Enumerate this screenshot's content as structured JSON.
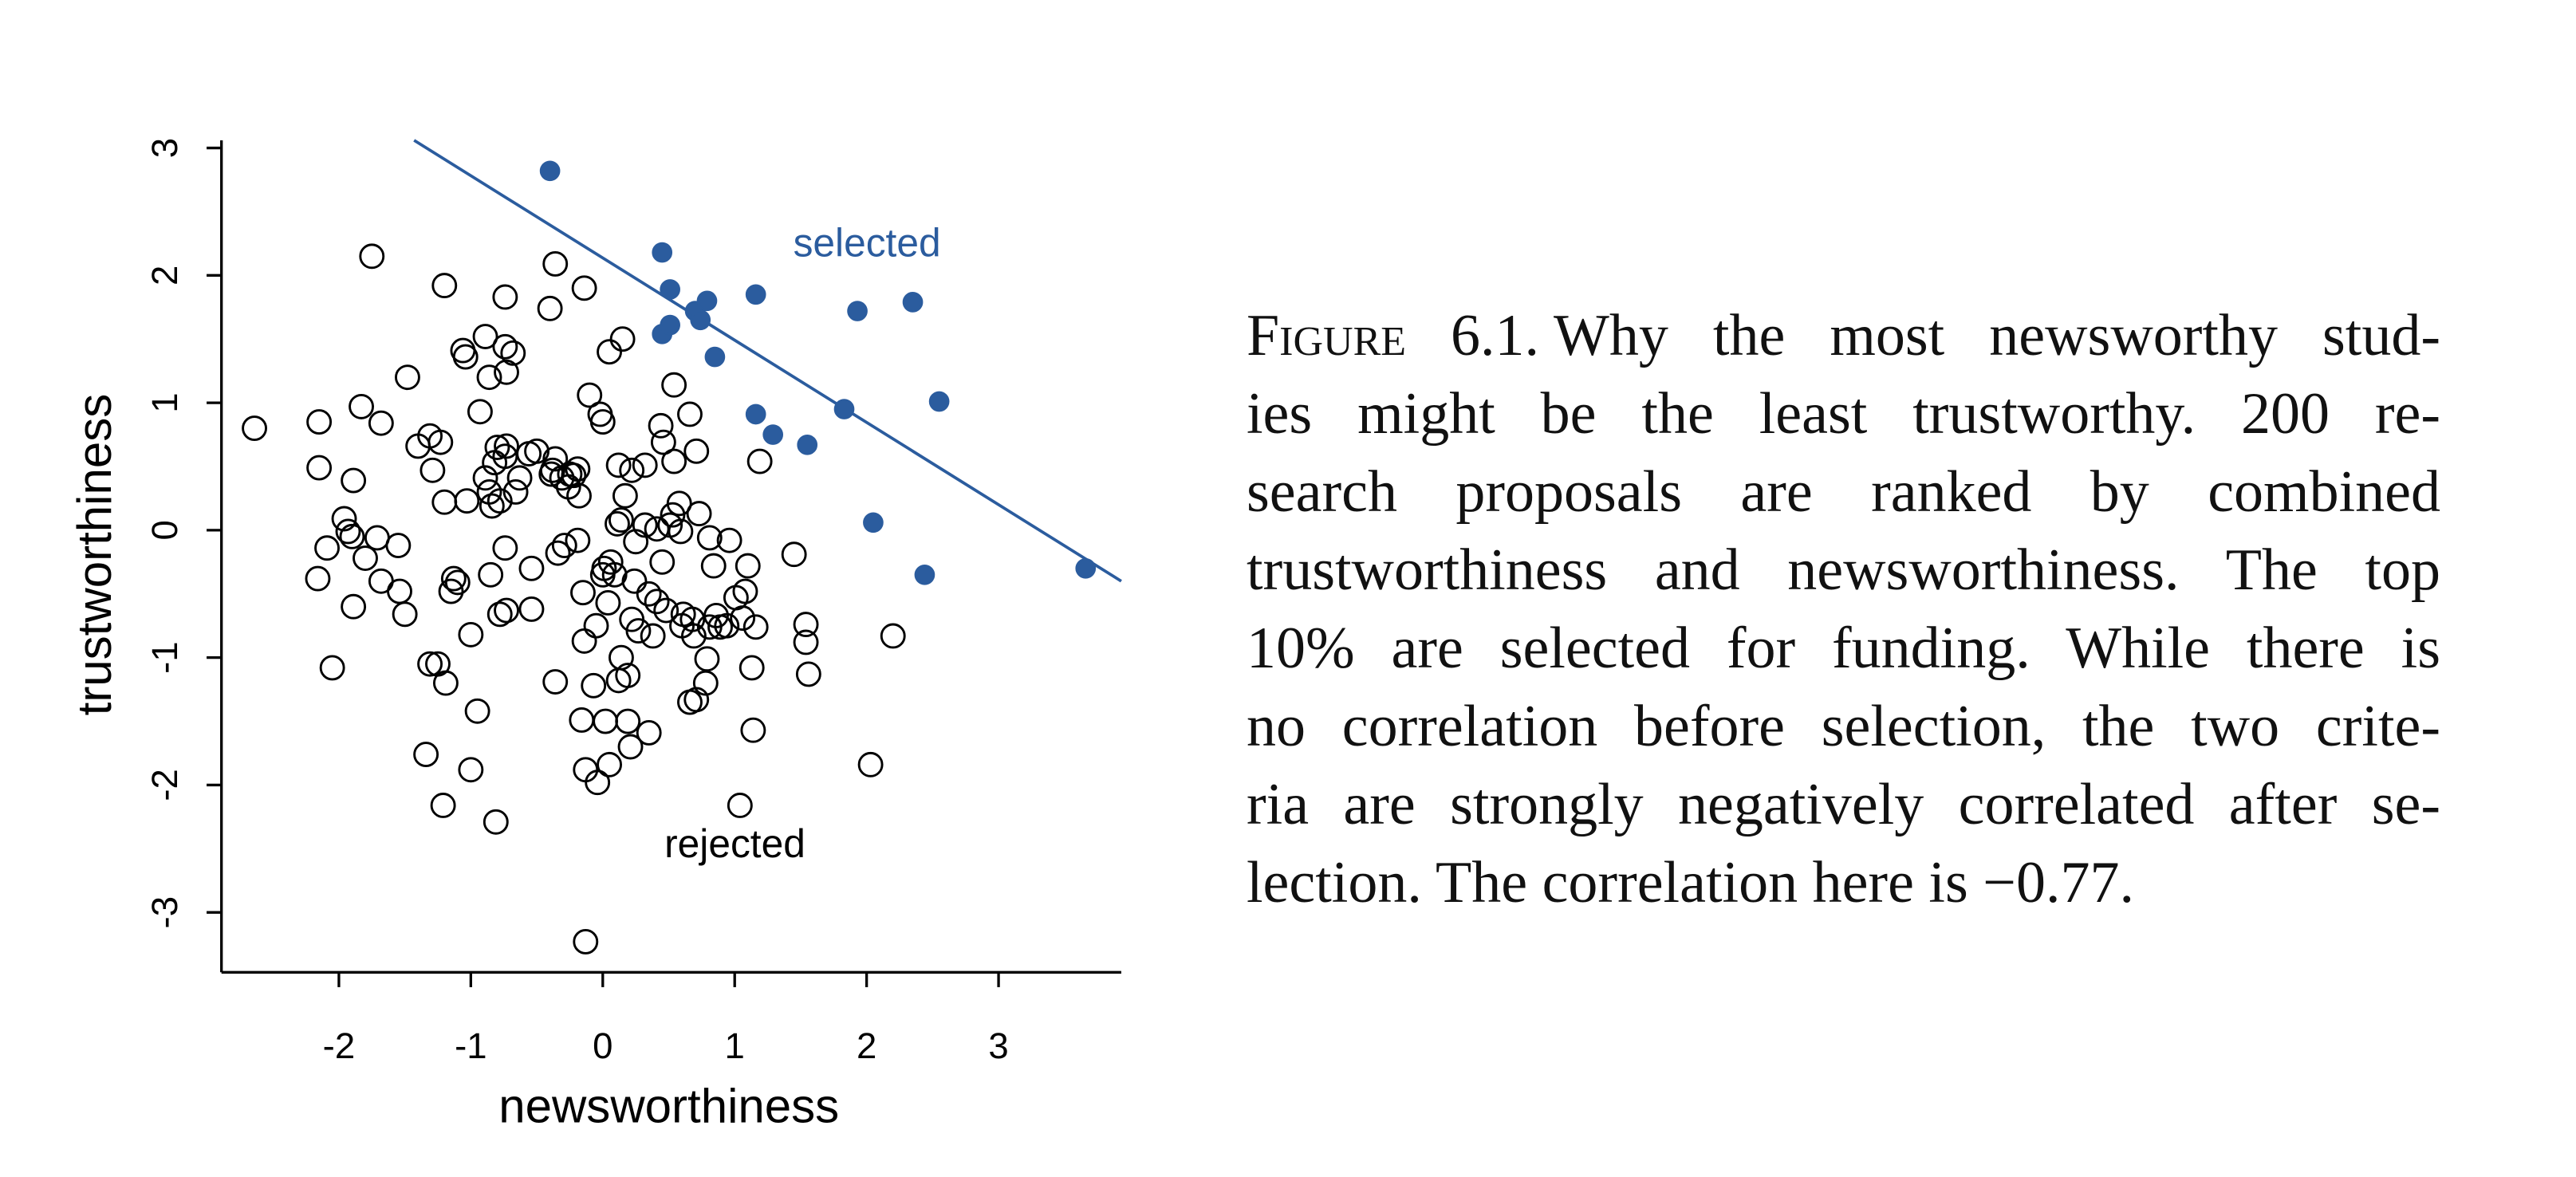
{
  "chart_data": {
    "type": "scatter",
    "xlabel": "newsworthiness",
    "ylabel": "trustworthiness",
    "xlim": [
      -2.89,
      3.93
    ],
    "ylim": [
      -3.47,
      3.06
    ],
    "xticks": [
      -2,
      -1,
      0,
      1,
      2,
      3
    ],
    "yticks": [
      -3,
      -2,
      -1,
      0,
      1,
      2,
      3
    ],
    "line": {
      "color": "#2b5c9e",
      "x": [
        -1.43,
        3.93
      ],
      "y": [
        3.06,
        -0.4
      ]
    },
    "series": [
      {
        "name": "selected",
        "color": "#2b5c9e",
        "filled": true,
        "x": [
          -0.4,
          0.45,
          0.51,
          0.45,
          0.51,
          0.7,
          0.74,
          0.79,
          1.16,
          0.85,
          1.93,
          2.35,
          1.16,
          1.29,
          1.55,
          1.83,
          2.55,
          2.05,
          2.44,
          3.66
        ],
        "y": [
          2.82,
          2.18,
          1.89,
          1.54,
          1.61,
          1.72,
          1.65,
          1.8,
          1.85,
          1.36,
          1.72,
          1.79,
          0.91,
          0.75,
          0.67,
          0.95,
          1.01,
          0.06,
          -0.35,
          -0.3
        ]
      },
      {
        "name": "rejected",
        "color": "#000000",
        "filled": false,
        "x": [
          -2.64,
          -2.15,
          -2.15,
          -2.16,
          -2.09,
          -2.05,
          -1.96,
          -1.93,
          -1.9,
          -1.89,
          -1.89,
          -1.83,
          -1.8,
          -1.75,
          -1.71,
          -1.68,
          -1.68,
          -1.55,
          -1.54,
          -1.5,
          -1.48,
          -1.4,
          -1.31,
          -1.29,
          -1.34,
          -1.31,
          -1.25,
          -1.23,
          -1.21,
          -1.2,
          -1.2,
          -1.19,
          -1.15,
          -1.13,
          -1.1,
          -1.06,
          -1.04,
          -1.03,
          -1.0,
          -1.0,
          -0.95,
          -0.93,
          -0.89,
          -0.89,
          -0.86,
          -0.86,
          -0.85,
          -0.84,
          -0.82,
          -0.81,
          -0.8,
          -0.78,
          -0.78,
          -0.74,
          -0.74,
          -0.74,
          -0.73,
          -0.73,
          -0.73,
          -0.74,
          -0.68,
          -0.66,
          -0.63,
          -0.56,
          -0.54,
          -0.54,
          -0.5,
          -0.4,
          -0.39,
          -0.38,
          -0.36,
          -0.36,
          -0.36,
          -0.34,
          -0.31,
          -0.29,
          -0.26,
          -0.25,
          -0.22,
          -0.19,
          -0.19,
          -0.18,
          -0.16,
          -0.15,
          -0.14,
          -0.14,
          -0.13,
          -0.13,
          -0.1,
          -0.07,
          -0.05,
          -0.04,
          -0.02,
          0,
          0,
          0.01,
          0.02,
          0.04,
          0.05,
          0.05,
          0.06,
          0.09,
          0.11,
          0.12,
          0.14,
          0.12,
          0.14,
          0.15,
          0.17,
          0.19,
          0.19,
          0.21,
          0.22,
          0.22,
          0.24,
          0.25,
          0.27,
          0.32,
          0.32,
          0.35,
          0.35,
          0.38,
          0.41,
          0.41,
          0.44,
          0.45,
          0.46,
          0.48,
          0.51,
          0.53,
          0.54,
          0.54,
          0.58,
          0.59,
          0.6,
          0.61,
          0.66,
          0.66,
          0.68,
          0.69,
          0.71,
          0.71,
          0.73,
          0.78,
          0.79,
          0.81,
          0.81,
          0.84,
          0.86,
          0.89,
          0.94,
          0.96,
          1.01,
          1.04,
          1.06,
          1.08,
          1.1,
          1.13,
          1.14,
          1.16,
          1.19,
          1.45,
          1.54,
          1.54,
          1.56,
          2.03,
          2.2
        ],
        "y": [
          0.8,
          0.85,
          0.49,
          -0.38,
          -0.14,
          -1.08,
          0.09,
          -0.01,
          -0.05,
          0.39,
          -0.6,
          0.97,
          -0.22,
          2.15,
          -0.06,
          0.84,
          -0.4,
          -0.12,
          -0.48,
          -0.66,
          1.2,
          0.66,
          0.74,
          0.47,
          -1.76,
          -1.05,
          -1.05,
          0.69,
          -2.16,
          1.92,
          0.22,
          -1.2,
          -0.48,
          -0.38,
          -0.41,
          1.41,
          1.36,
          0.23,
          -0.82,
          -1.88,
          -1.42,
          0.93,
          1.52,
          0.41,
          1.2,
          0.3,
          -0.35,
          0.19,
          0.53,
          -2.29,
          0.65,
          -0.66,
          0.23,
          1.83,
          1.44,
          0.58,
          -0.63,
          1.24,
          0.66,
          -0.14,
          1.39,
          0.3,
          0.41,
          0.6,
          -0.62,
          -0.3,
          0.62,
          1.74,
          0.44,
          0.47,
          0.56,
          2.09,
          -1.19,
          -0.18,
          0.41,
          -0.12,
          0.34,
          0.44,
          0.43,
          0.48,
          -0.08,
          0.27,
          -1.49,
          -0.49,
          1.9,
          -0.87,
          -1.88,
          -3.23,
          1.06,
          -1.22,
          -0.75,
          -1.98,
          0.91,
          -0.35,
          0.85,
          -0.3,
          -1.5,
          -0.57,
          1.4,
          -1.84,
          -0.25,
          -0.35,
          0.05,
          0.51,
          0.08,
          -1.18,
          -1.0,
          1.5,
          0.27,
          -1.14,
          -1.5,
          -1.7,
          0.47,
          -0.7,
          -0.4,
          -0.09,
          -0.79,
          0.04,
          0.51,
          -0.5,
          -1.59,
          -0.83,
          0.01,
          -0.56,
          0.82,
          -0.25,
          0.69,
          -0.63,
          0.04,
          0.12,
          1.14,
          0.54,
          0.21,
          -0.01,
          -0.75,
          -0.66,
          0.91,
          -1.35,
          -0.7,
          -0.83,
          0.62,
          -1.33,
          0.13,
          -1.2,
          -1.01,
          -0.06,
          -0.76,
          -0.28,
          -0.67,
          -0.76,
          -0.75,
          -0.08,
          -0.53,
          -2.16,
          -0.69,
          -0.48,
          -0.28,
          -1.08,
          -1.57,
          -0.76,
          0.54,
          -0.19,
          -0.74,
          -0.88,
          -1.13,
          -1.84,
          -0.83
        ]
      }
    ]
  },
  "caption": {
    "label": "Figure 6.1.",
    "lines": [
      "Why the most newsworthy stud-",
      "ies might be the least trustworthy.  200 re-",
      "search proposals are ranked by combined",
      "trustworthiness and newsworthiness. The top",
      "10% are selected for funding.  While there is",
      "no correlation before selection, the two crite-",
      "ria are strongly negatively correlated after se-",
      "lection. The correlation here is −0.77."
    ]
  }
}
